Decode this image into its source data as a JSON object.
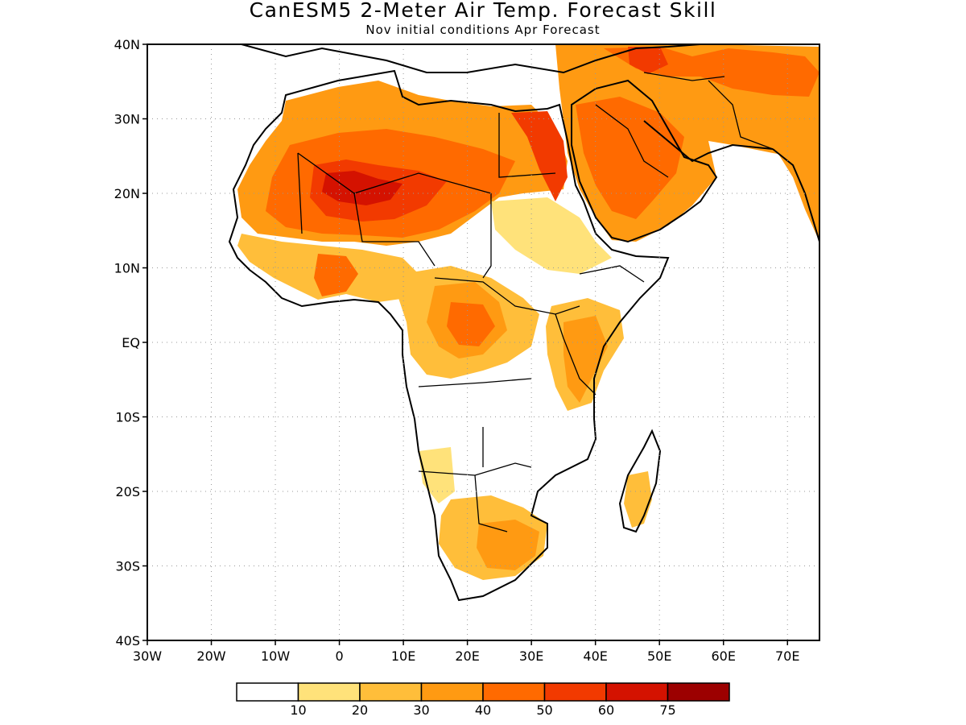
{
  "header": {
    "title": "CanESM5 2-Meter Air Temp. Forecast Skill",
    "subtitle": "Nov initial conditions  Apr Forecast"
  },
  "map": {
    "lat_labels": [
      "40N",
      "30N",
      "20N",
      "10N",
      "EQ",
      "10S",
      "20S",
      "30S",
      "40S"
    ],
    "lon_labels": [
      "30W",
      "20W",
      "10W",
      "0",
      "10E",
      "20E",
      "30E",
      "40E",
      "50E",
      "60E",
      "70E"
    ],
    "extent": {
      "lon_min": -30,
      "lon_max": 75,
      "lat_min": -40,
      "lat_max": 40
    },
    "grid": true
  },
  "legend": {
    "colors": [
      "#ffffff",
      "#ffe27a",
      "#ffbe3a",
      "#ff9a12",
      "#ff6a00",
      "#f23a00",
      "#d41200",
      "#9c0000"
    ],
    "labels": [
      "10",
      "20",
      "30",
      "40",
      "50",
      "60",
      "75"
    ]
  }
}
